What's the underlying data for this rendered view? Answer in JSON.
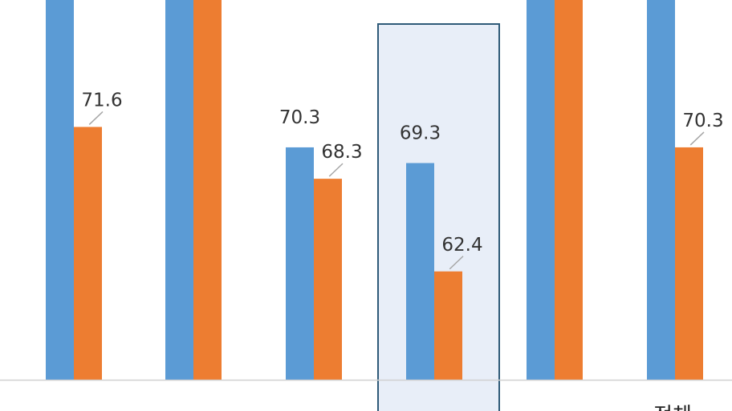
{
  "chart_data": {
    "type": "bar",
    "categories": [
      "",
      "",
      "",
      "",
      "",
      "전체"
    ],
    "category_label_notes": "Category labels are cut off at the bottom edge; only '전체' (last group) is legible.",
    "series": [
      {
        "values": [
          null,
          null,
          70.3,
          69.3,
          null,
          null
        ],
        "color": "#5B9BD5"
      },
      {
        "values": [
          71.6,
          null,
          68.3,
          62.4,
          null,
          70.3
        ],
        "color": "#ED7D31"
      }
    ],
    "data_labels": {
      "series_0": [
        null,
        null,
        "70.3",
        "69.3",
        null,
        null
      ],
      "series_1": [
        "71.6",
        null,
        "68.3",
        "62.4",
        null,
        "70.3"
      ]
    },
    "highlighted_category_index": 3,
    "highlight_fill": "#E8EEF8",
    "highlight_border": "#2E5A78",
    "ylim": [
      55.5,
      77.5
    ],
    "grid": false,
    "legend": "none"
  }
}
